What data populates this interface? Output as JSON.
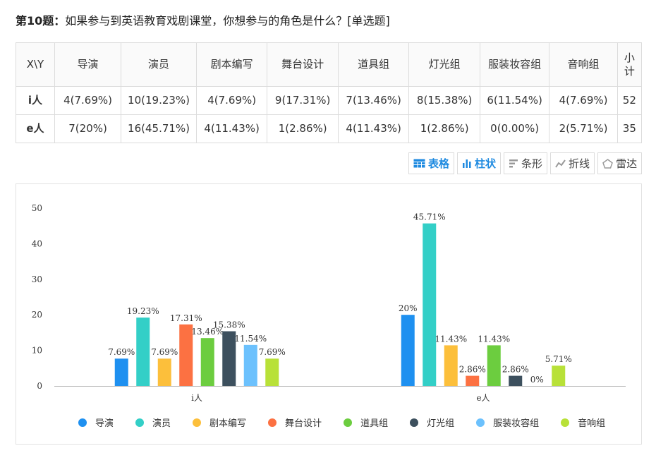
{
  "question": {
    "number": "第10题：",
    "text": "如果参与到英语教育戏剧课堂，你想参与的角色是什么？[单选题]"
  },
  "table": {
    "corner": "X\\Y",
    "columns": [
      "导演",
      "演员",
      "剧本编写",
      "舞台设计",
      "道具组",
      "灯光组",
      "服装妆容组",
      "音响组",
      "小计"
    ],
    "rows": [
      {
        "label": "i人",
        "cells": [
          "4(7.69%)",
          "10(19.23%)",
          "4(7.69%)",
          "9(17.31%)",
          "7(13.46%)",
          "8(15.38%)",
          "6(11.54%)",
          "4(7.69%)",
          "52"
        ]
      },
      {
        "label": "e人",
        "cells": [
          "7(20%)",
          "16(45.71%)",
          "4(11.43%)",
          "1(2.86%)",
          "4(11.43%)",
          "1(2.86%)",
          "0(0.00%)",
          "2(5.71%)",
          "35"
        ]
      }
    ]
  },
  "tabs": [
    {
      "label": "表格",
      "icon": "table-icon",
      "active": true
    },
    {
      "label": "柱状",
      "icon": "bar-chart-icon",
      "active": true
    },
    {
      "label": "条形",
      "icon": "horizontal-bar-icon",
      "active": false
    },
    {
      "label": "折线",
      "icon": "line-chart-icon",
      "active": false
    },
    {
      "label": "雷达",
      "icon": "radar-icon",
      "active": false
    }
  ],
  "chart_data": {
    "type": "bar",
    "categories": [
      "i人",
      "e人"
    ],
    "ylim": [
      0,
      50
    ],
    "yticks": [
      0,
      10,
      20,
      30,
      40,
      50
    ],
    "grid": false,
    "legend_position": "bottom",
    "series": [
      {
        "name": "导演",
        "color": "#1e90f0",
        "values": [
          7.69,
          20
        ],
        "labels": [
          "7.69%",
          "20%"
        ]
      },
      {
        "name": "演员",
        "color": "#33cfc7",
        "values": [
          19.23,
          45.71
        ],
        "labels": [
          "19.23%",
          "45.71%"
        ]
      },
      {
        "name": "剧本编写",
        "color": "#fcbf3b",
        "values": [
          7.69,
          11.43
        ],
        "labels": [
          "7.69%",
          "11.43%"
        ]
      },
      {
        "name": "舞台设计",
        "color": "#fc7142",
        "values": [
          17.31,
          2.86
        ],
        "labels": [
          "17.31%",
          "2.86%"
        ]
      },
      {
        "name": "道具组",
        "color": "#6ccd3f",
        "values": [
          13.46,
          11.43
        ],
        "labels": [
          "13.46%",
          "11.43%"
        ]
      },
      {
        "name": "灯光组",
        "color": "#3d505e",
        "values": [
          15.38,
          2.86
        ],
        "labels": [
          "15.38%",
          "2.86%"
        ]
      },
      {
        "name": "服装妆容组",
        "color": "#6cc1fd",
        "values": [
          11.54,
          0
        ],
        "labels": [
          "11.54%",
          "0%"
        ]
      },
      {
        "name": "音响组",
        "color": "#b8e138",
        "values": [
          7.69,
          5.71
        ],
        "labels": [
          "7.69%",
          "5.71%"
        ]
      }
    ]
  }
}
